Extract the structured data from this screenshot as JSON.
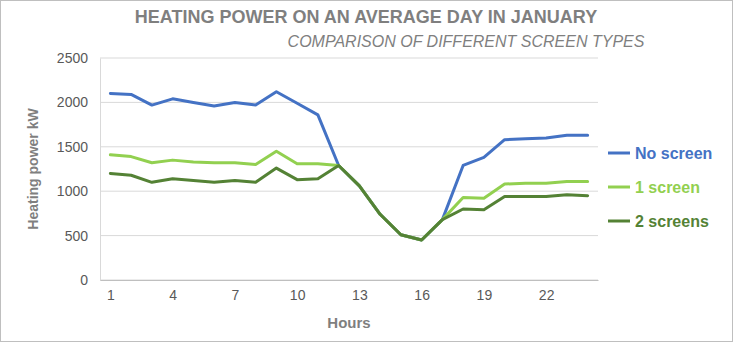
{
  "chart_data": {
    "type": "line",
    "title": "HEATING POWER ON AN AVERAGE DAY IN JANUARY",
    "subtitle": "COMPARISON OF DIFFERENT SCREEN TYPES",
    "x_label": "Hours",
    "y_label": "Heating power kW",
    "x": [
      1,
      2,
      3,
      4,
      5,
      6,
      7,
      8,
      9,
      10,
      11,
      12,
      13,
      14,
      15,
      16,
      17,
      18,
      19,
      20,
      21,
      22,
      23,
      24
    ],
    "xlim": [
      0.5,
      24.5
    ],
    "xticks": [
      1,
      4,
      7,
      10,
      13,
      16,
      19,
      22
    ],
    "ylim": [
      0,
      2500
    ],
    "yticks": [
      0,
      500,
      1000,
      1500,
      2000,
      2500
    ],
    "grid": true,
    "legend": "right",
    "series": [
      {
        "name": "No screen",
        "color": "#4472c4",
        "values": [
          2100,
          2090,
          1970,
          2040,
          2000,
          1960,
          2000,
          1970,
          2120,
          1990,
          1860,
          1290,
          1060,
          740,
          510,
          450,
          680,
          1290,
          1380,
          1580,
          1590,
          1600,
          1630,
          1630
        ]
      },
      {
        "name": "1 screen",
        "color": "#92d050",
        "values": [
          1410,
          1390,
          1320,
          1350,
          1330,
          1320,
          1320,
          1300,
          1450,
          1310,
          1310,
          1290,
          1060,
          740,
          510,
          450,
          680,
          930,
          920,
          1080,
          1090,
          1090,
          1110,
          1110
        ]
      },
      {
        "name": "2 screens",
        "color": "#548235",
        "values": [
          1200,
          1180,
          1100,
          1140,
          1120,
          1100,
          1120,
          1100,
          1260,
          1130,
          1140,
          1290,
          1060,
          740,
          510,
          450,
          680,
          800,
          790,
          940,
          940,
          940,
          960,
          950
        ]
      }
    ]
  }
}
